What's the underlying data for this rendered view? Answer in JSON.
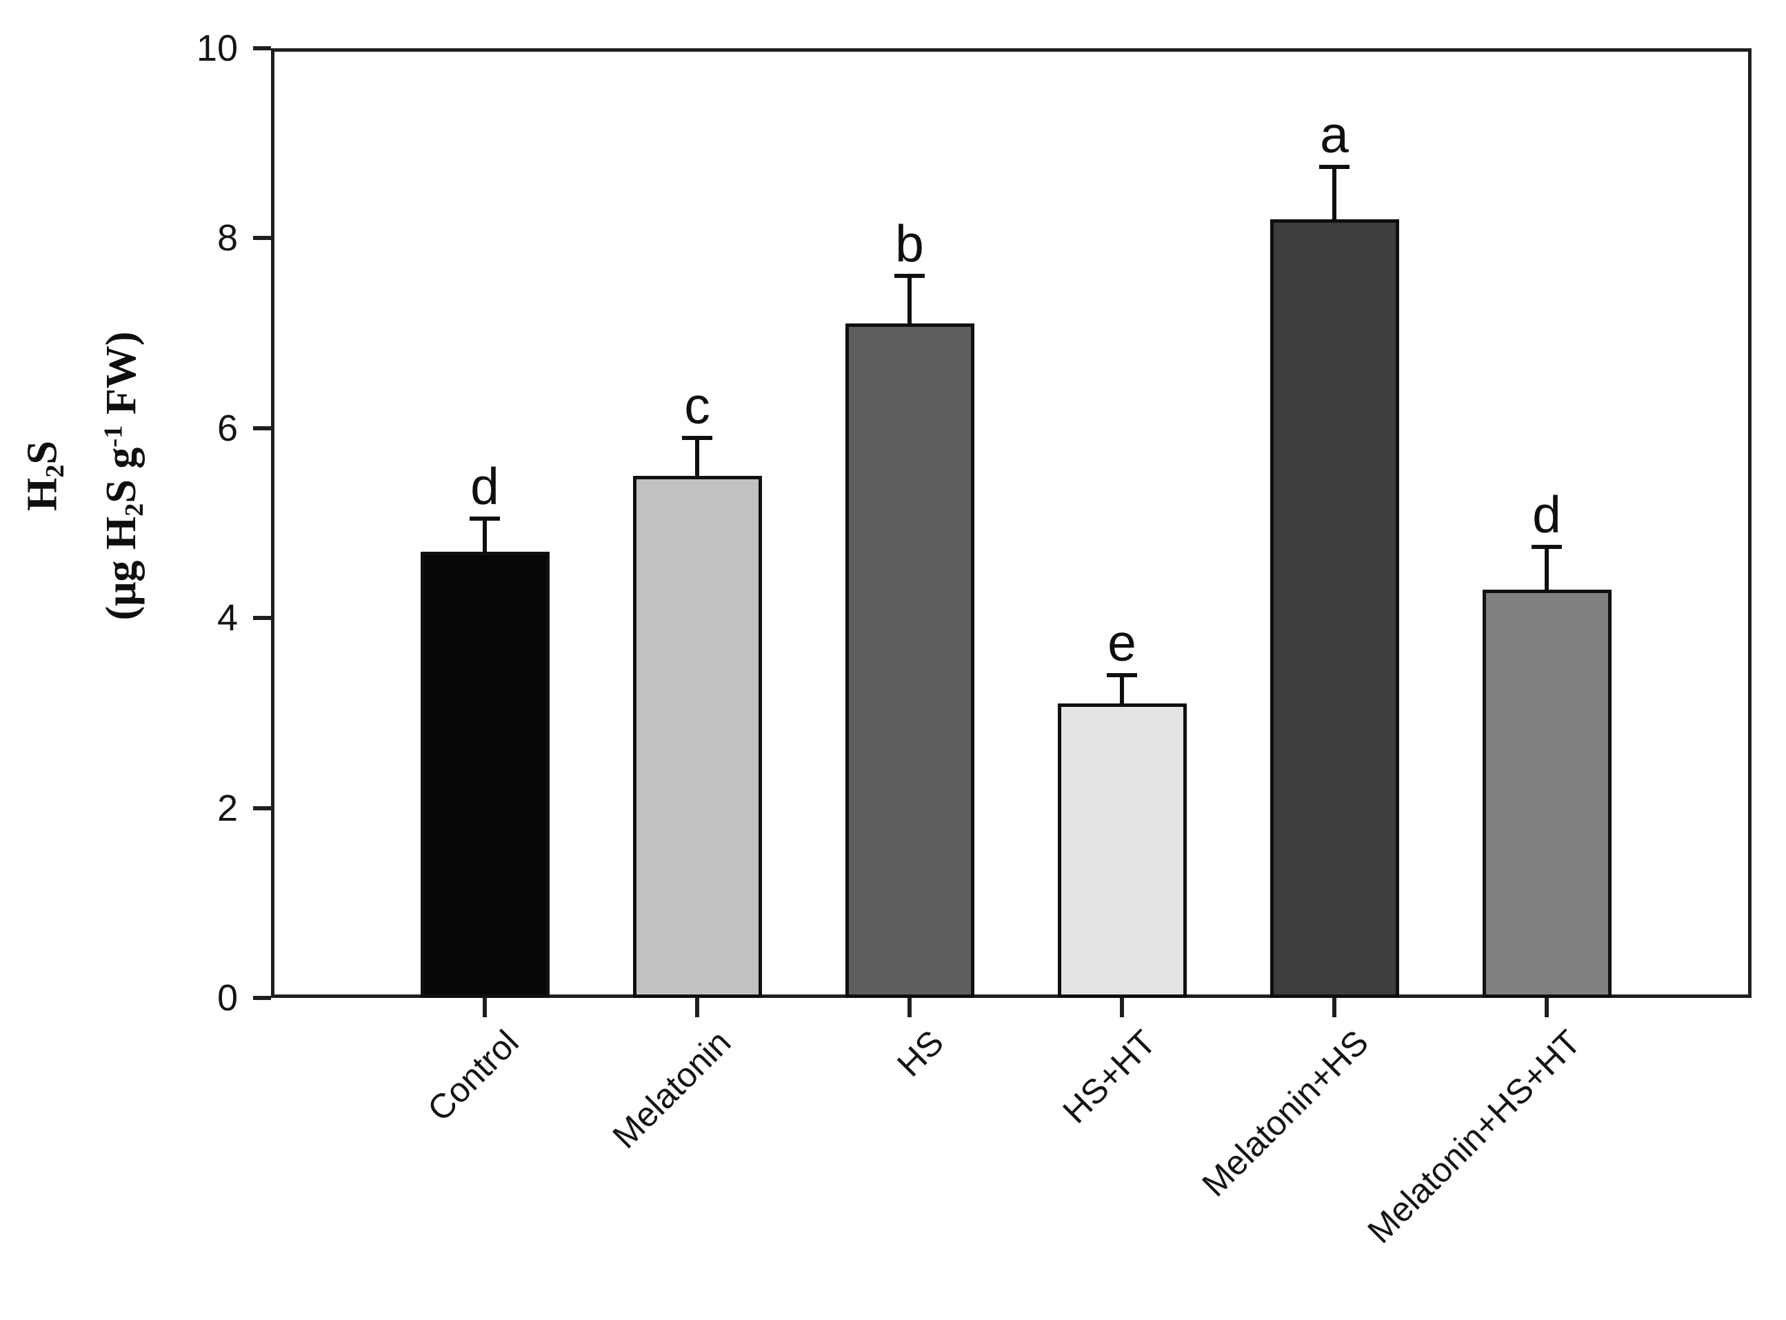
{
  "chart_data": {
    "type": "bar",
    "title": "",
    "categories": [
      "Control",
      "Melatonin",
      "HS",
      "HS+HT",
      "Melatonin+HS",
      "Melatonin+HS+HT"
    ],
    "values": [
      4.7,
      5.5,
      7.1,
      3.1,
      8.2,
      4.3
    ],
    "errors": [
      0.35,
      0.4,
      0.5,
      0.3,
      0.55,
      0.45
    ],
    "significance_letters": [
      "d",
      "c",
      "b",
      "e",
      "a",
      "d"
    ],
    "bar_colors": [
      "#060606",
      "#c1c1c1",
      "#5e5e5e",
      "#e3e3e3",
      "#3e3e3e",
      "#808080"
    ],
    "bar_border_color": "#0f0f0f",
    "axis_color": "#1f1f1f",
    "background_color": "#ffffff",
    "ylabel_line1_parts": [
      {
        "text": "H"
      },
      {
        "text": "2",
        "script": "sub"
      },
      {
        "text": "S"
      }
    ],
    "ylabel_line2_parts": [
      {
        "text": "(μg H"
      },
      {
        "text": "2",
        "script": "sub"
      },
      {
        "text": "S g"
      },
      {
        "text": "-1",
        "script": "sup"
      },
      {
        "text": " FW)"
      }
    ],
    "xlabel": "",
    "ylim": [
      0,
      10
    ],
    "yticks": [
      "0",
      "2",
      "4",
      "6",
      "8",
      "10"
    ],
    "grid": false,
    "legend": null,
    "error_bar_direction": "upper-only",
    "frame": "full-box"
  }
}
